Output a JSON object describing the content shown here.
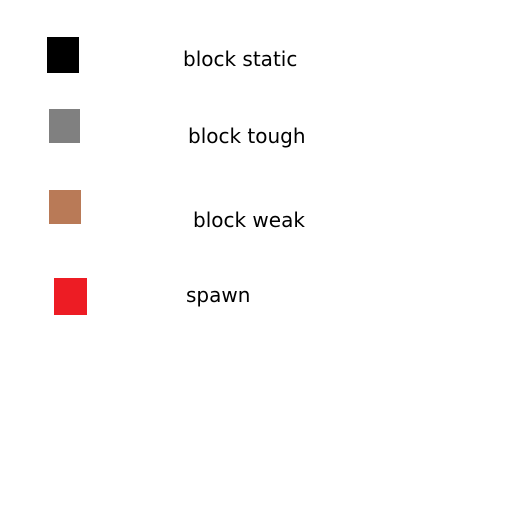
{
  "legend": {
    "items": [
      {
        "label": "block static",
        "color": "#000000"
      },
      {
        "label": "block tough",
        "color": "#808080"
      },
      {
        "label": "block weak",
        "color": "#b97a57"
      },
      {
        "label": "spawn",
        "color": "#ed1c24"
      }
    ]
  }
}
